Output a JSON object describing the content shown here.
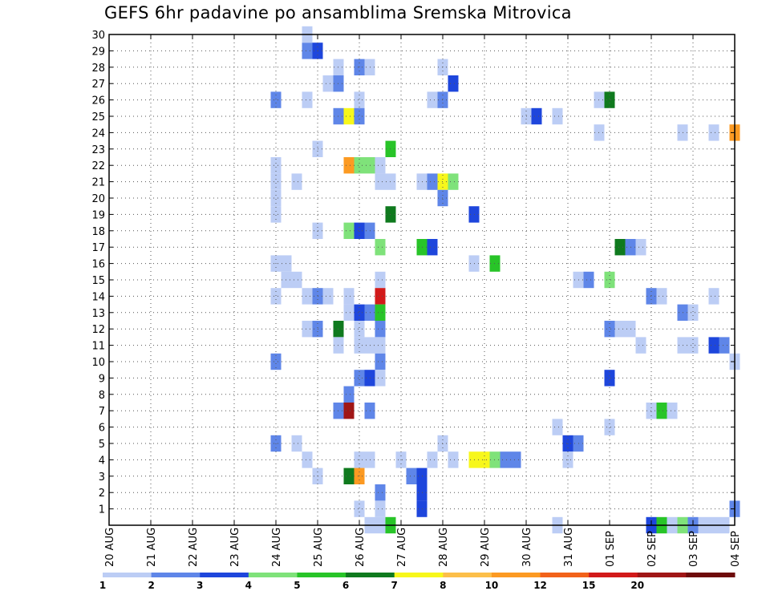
{
  "chart_data": {
    "type": "heatmap",
    "title": "GEFS 6hr padavine po ansamblima Sremska Mitrovica",
    "xlabel": "",
    "ylabel": "",
    "x_tick_labels": [
      "20 AUG",
      "21 AUG",
      "22 AUG",
      "23 AUG",
      "24 AUG",
      "25 AUG",
      "26 AUG",
      "27 AUG",
      "28 AUG",
      "29 AUG",
      "30 AUG",
      "31 AUG",
      "01 SEP",
      "02 SEP",
      "03 SEP",
      "04 SEP"
    ],
    "x_range_days": [
      0,
      15
    ],
    "y_tick_labels": [
      "1",
      "2",
      "3",
      "4",
      "5",
      "6",
      "7",
      "8",
      "9",
      "10",
      "11",
      "12",
      "13",
      "14",
      "15",
      "16",
      "17",
      "18",
      "19",
      "20",
      "21",
      "22",
      "23",
      "24",
      "25",
      "26",
      "27",
      "28",
      "29",
      "30"
    ],
    "y_range": [
      0,
      30
    ],
    "grid": true,
    "colorbar": {
      "labels": [
        "1",
        "2",
        "3",
        "4",
        "5",
        "6",
        "7",
        "8",
        "10",
        "12",
        "15",
        "20"
      ],
      "colors": [
        "#bccdf5",
        "#5f86e8",
        "#1e46dc",
        "#7fe27a",
        "#28c428",
        "#0f7a1e",
        "#f7f71b",
        "#fcbf4a",
        "#fc9a22",
        "#f2621a",
        "#d21a1a",
        "#a01616",
        "#6e0b0b"
      ]
    },
    "cells": [
      [
        4.75,
        29,
        2
      ],
      [
        4.75,
        30,
        1
      ],
      [
        5.0,
        29,
        3
      ],
      [
        5.5,
        28,
        1
      ],
      [
        6.0,
        28,
        2
      ],
      [
        6.25,
        28,
        1
      ],
      [
        8.0,
        28,
        1
      ],
      [
        5.25,
        27,
        1
      ],
      [
        5.5,
        27,
        2
      ],
      [
        8.25,
        27,
        3
      ],
      [
        4.0,
        26,
        2
      ],
      [
        4.75,
        26,
        1
      ],
      [
        6.0,
        26,
        1
      ],
      [
        7.75,
        26,
        1
      ],
      [
        8.0,
        26,
        2
      ],
      [
        11.75,
        26,
        1
      ],
      [
        12.0,
        26,
        6
      ],
      [
        5.5,
        25,
        2
      ],
      [
        5.75,
        25,
        7
      ],
      [
        6.0,
        25,
        2
      ],
      [
        10.0,
        25,
        1
      ],
      [
        10.25,
        25,
        3
      ],
      [
        10.75,
        25,
        1
      ],
      [
        11.75,
        24,
        1
      ],
      [
        13.75,
        24,
        1
      ],
      [
        14.5,
        24,
        1
      ],
      [
        15.0,
        24,
        9
      ],
      [
        5.0,
        23,
        1
      ],
      [
        6.75,
        23,
        5
      ],
      [
        4.0,
        22,
        1
      ],
      [
        5.75,
        22,
        9
      ],
      [
        6.0,
        22,
        4
      ],
      [
        6.25,
        22,
        4
      ],
      [
        6.5,
        22,
        1
      ],
      [
        4.0,
        21,
        1
      ],
      [
        4.5,
        21,
        1
      ],
      [
        6.5,
        21,
        1
      ],
      [
        6.75,
        21,
        1
      ],
      [
        7.5,
        21,
        1
      ],
      [
        7.75,
        21,
        2
      ],
      [
        8.0,
        21,
        7
      ],
      [
        8.25,
        21,
        4
      ],
      [
        4.0,
        20,
        1
      ],
      [
        8.0,
        20,
        2
      ],
      [
        4.0,
        19,
        1
      ],
      [
        6.75,
        19,
        6
      ],
      [
        8.75,
        19,
        3
      ],
      [
        5.0,
        18,
        1
      ],
      [
        5.75,
        18,
        4
      ],
      [
        6.0,
        18,
        3
      ],
      [
        6.25,
        18,
        2
      ],
      [
        6.5,
        17,
        4
      ],
      [
        7.5,
        17,
        5
      ],
      [
        7.75,
        17,
        3
      ],
      [
        12.25,
        17,
        6
      ],
      [
        12.5,
        17,
        2
      ],
      [
        12.75,
        17,
        1
      ],
      [
        4.0,
        16,
        1
      ],
      [
        4.25,
        16,
        1
      ],
      [
        8.75,
        16,
        1
      ],
      [
        9.25,
        16,
        5
      ],
      [
        4.25,
        15,
        1
      ],
      [
        4.5,
        15,
        1
      ],
      [
        6.5,
        15,
        1
      ],
      [
        11.25,
        15,
        1
      ],
      [
        11.5,
        15,
        2
      ],
      [
        12.0,
        15,
        4
      ],
      [
        4.0,
        14,
        1
      ],
      [
        4.75,
        14,
        1
      ],
      [
        5.0,
        14,
        2
      ],
      [
        5.25,
        14,
        1
      ],
      [
        5.75,
        14,
        1
      ],
      [
        6.5,
        14,
        11
      ],
      [
        13.0,
        14,
        2
      ],
      [
        13.25,
        14,
        1
      ],
      [
        14.5,
        14,
        1
      ],
      [
        5.75,
        13,
        1
      ],
      [
        6.0,
        13,
        3
      ],
      [
        6.25,
        13,
        2
      ],
      [
        6.5,
        13,
        5
      ],
      [
        13.75,
        13,
        2
      ],
      [
        14.0,
        13,
        1
      ],
      [
        4.75,
        12,
        1
      ],
      [
        5.0,
        12,
        2
      ],
      [
        5.5,
        12,
        6
      ],
      [
        6.0,
        12,
        1
      ],
      [
        6.5,
        12,
        2
      ],
      [
        12.0,
        12,
        2
      ],
      [
        12.25,
        12,
        1
      ],
      [
        12.5,
        12,
        1
      ],
      [
        5.5,
        11,
        1
      ],
      [
        6.0,
        11,
        1
      ],
      [
        6.25,
        11,
        1
      ],
      [
        6.5,
        11,
        1
      ],
      [
        12.75,
        11,
        1
      ],
      [
        13.75,
        11,
        1
      ],
      [
        14.0,
        11,
        1
      ],
      [
        14.5,
        11,
        3
      ],
      [
        14.75,
        11,
        2
      ],
      [
        4.0,
        10,
        2
      ],
      [
        6.5,
        10,
        2
      ],
      [
        15.0,
        10,
        1
      ],
      [
        6.0,
        9,
        2
      ],
      [
        6.25,
        9,
        3
      ],
      [
        6.5,
        9,
        1
      ],
      [
        12.0,
        9,
        3
      ],
      [
        5.75,
        8,
        2
      ],
      [
        5.5,
        7,
        2
      ],
      [
        5.75,
        7,
        12
      ],
      [
        6.25,
        7,
        2
      ],
      [
        13.0,
        7,
        1
      ],
      [
        13.25,
        7,
        5
      ],
      [
        13.5,
        7,
        1
      ],
      [
        10.75,
        6,
        1
      ],
      [
        12.0,
        6,
        1
      ],
      [
        4.0,
        5,
        2
      ],
      [
        4.5,
        5,
        1
      ],
      [
        8.0,
        5,
        1
      ],
      [
        11.0,
        5,
        3
      ],
      [
        11.25,
        5,
        2
      ],
      [
        4.75,
        4,
        1
      ],
      [
        6.0,
        4,
        1
      ],
      [
        6.25,
        4,
        1
      ],
      [
        7.0,
        4,
        1
      ],
      [
        7.75,
        4,
        1
      ],
      [
        8.25,
        4,
        1
      ],
      [
        8.75,
        4,
        7
      ],
      [
        9.0,
        4,
        7
      ],
      [
        9.25,
        4,
        4
      ],
      [
        9.5,
        4,
        2
      ],
      [
        9.75,
        4,
        2
      ],
      [
        11.0,
        4,
        1
      ],
      [
        5.0,
        3,
        1
      ],
      [
        5.75,
        3,
        6
      ],
      [
        6.0,
        3,
        9
      ],
      [
        7.25,
        3,
        2
      ],
      [
        7.5,
        3,
        3
      ],
      [
        6.5,
        2,
        2
      ],
      [
        7.5,
        2,
        3
      ],
      [
        6.0,
        1,
        1
      ],
      [
        6.5,
        1,
        1
      ],
      [
        7.5,
        1,
        3
      ],
      [
        15.0,
        1,
        2
      ],
      [
        6.25,
        0,
        1
      ],
      [
        6.5,
        0,
        1
      ],
      [
        6.75,
        0,
        5
      ],
      [
        10.75,
        0,
        1
      ],
      [
        13.0,
        0,
        3
      ],
      [
        13.25,
        0,
        5
      ],
      [
        13.5,
        0,
        1
      ],
      [
        13.75,
        0,
        4
      ],
      [
        14.0,
        0,
        2
      ],
      [
        14.25,
        0,
        1
      ],
      [
        14.5,
        0,
        1
      ],
      [
        14.75,
        0,
        1
      ]
    ]
  }
}
